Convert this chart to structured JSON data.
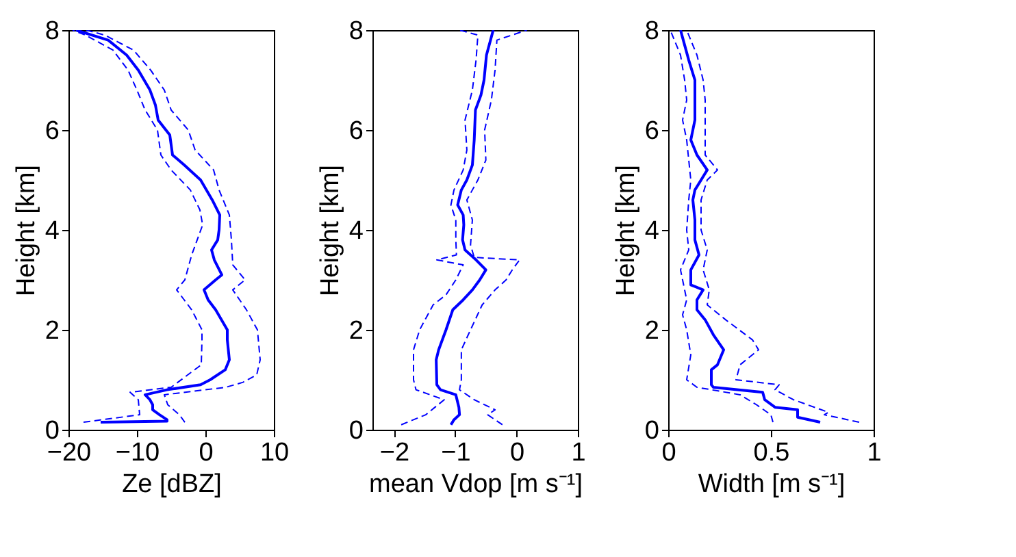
{
  "chart_data": [
    {
      "type": "line",
      "xlabel": "Ze [dBZ]",
      "ylabel": "Height [km]",
      "xlim": [
        -20,
        10
      ],
      "xticks": [
        -20,
        -10,
        0,
        10
      ],
      "ylim": [
        0,
        8
      ],
      "yticks": [
        0,
        2,
        4,
        6,
        8
      ],
      "series": [
        {
          "color": "#0000ff",
          "line_style": "solid",
          "x": [
            -15.3,
            -5.6,
            -5.6,
            -6.7,
            -7.7,
            -7.7,
            -8.1,
            -8.8,
            -5.6,
            -0.7,
            0.7,
            2.9,
            3.5,
            3.2,
            3.2,
            1.5,
            0.4,
            -0.2,
            1.5,
            2.4,
            1.3,
            0.9,
            1.8,
            2.0,
            2.1,
            1.0,
            -0.7,
            -3.1,
            -4.8,
            -5.2,
            -6.9,
            -7.3,
            -8.1,
            -9.8,
            -11.5,
            -14.2,
            -18.9
          ],
          "values": [
            0.15,
            0.17,
            0.2,
            0.3,
            0.4,
            0.5,
            0.6,
            0.7,
            0.8,
            0.9,
            1.0,
            1.2,
            1.4,
            1.8,
            2.0,
            2.4,
            2.6,
            2.8,
            3.0,
            3.1,
            3.4,
            3.6,
            3.8,
            4.0,
            4.3,
            4.6,
            5.0,
            5.3,
            5.5,
            5.9,
            6.2,
            6.5,
            6.8,
            7.2,
            7.5,
            7.8,
            8.0
          ]
        },
        {
          "color": "#0000ff",
          "line_style": "dashed",
          "x": [
            -17.8,
            -9.6,
            -9.8,
            -11,
            -5,
            -0.6,
            -0.5,
            -0.5,
            -2,
            -4.2,
            -3,
            -2,
            -1.2,
            -0.4,
            -0.8,
            -2.2,
            -5,
            -6.5,
            -7,
            -8.8,
            -10,
            -11.3,
            -13.5,
            -17.5,
            -19.4
          ],
          "values": [
            0.15,
            0.3,
            0.6,
            0.75,
            0.85,
            1.3,
            1.8,
            2.0,
            2.4,
            2.8,
            3.0,
            3.5,
            3.8,
            4.1,
            4.4,
            4.8,
            5.2,
            5.5,
            6.0,
            6.4,
            6.8,
            7.2,
            7.6,
            7.9,
            8.0
          ]
        },
        {
          "color": "#0000ff",
          "line_style": "dashed",
          "x": [
            -3,
            -3.8,
            -5.5,
            -6,
            3,
            5.5,
            7.5,
            8,
            7.6,
            6,
            4,
            5.8,
            4,
            3.8,
            3.5,
            2,
            1.2,
            -1.5,
            -2.5,
            -5,
            -6,
            -8,
            -10.5,
            -14.7,
            -17.4
          ],
          "values": [
            0.15,
            0.3,
            0.5,
            0.7,
            0.85,
            0.95,
            1.1,
            1.4,
            2.0,
            2.4,
            2.8,
            3.0,
            3.3,
            3.8,
            4.3,
            4.8,
            5.2,
            5.6,
            6.0,
            6.4,
            6.8,
            7.2,
            7.6,
            7.9,
            8.0
          ]
        }
      ]
    },
    {
      "type": "line",
      "xlabel": "mean Vdop [m s⁻¹]",
      "ylabel": "Height [km]",
      "xlim": [
        -2.35,
        1
      ],
      "xticks": [
        -2,
        -1,
        0,
        1
      ],
      "ylim": [
        0,
        8
      ],
      "yticks": [
        0,
        2,
        4,
        6,
        8
      ],
      "series": [
        {
          "color": "#0000ff",
          "line_style": "solid",
          "x": [
            -1.07,
            -1.02,
            -0.93,
            -0.94,
            -0.99,
            -1.24,
            -1.3,
            -1.31,
            -1.27,
            -1.15,
            -1.04,
            -0.87,
            -0.72,
            -0.6,
            -0.5,
            -0.66,
            -0.84,
            -0.88,
            -0.86,
            -0.87,
            -0.96,
            -0.9,
            -0.81,
            -0.72,
            -0.69,
            -0.67,
            -0.58,
            -0.53,
            -0.49,
            -0.38
          ],
          "values": [
            0.1,
            0.2,
            0.3,
            0.45,
            0.7,
            0.8,
            0.9,
            1.4,
            1.6,
            2.0,
            2.4,
            2.6,
            2.8,
            3.0,
            3.2,
            3.4,
            3.6,
            3.8,
            4.1,
            4.3,
            4.5,
            4.8,
            5.0,
            5.3,
            5.8,
            6.4,
            6.7,
            7.0,
            7.5,
            8.0
          ]
        },
        {
          "color": "#0000ff",
          "line_style": "dashed",
          "x": [
            -1.88,
            -1.48,
            -1.18,
            -1.64,
            -1.68,
            -1.68,
            -1.58,
            -1.36,
            -1.15,
            -0.99,
            -0.87,
            -1.3,
            -0.98,
            -0.99,
            -0.99,
            -1.07,
            -1.02,
            -0.87,
            -0.81,
            -0.84,
            -0.72,
            -0.66,
            -0.63,
            -0.93
          ],
          "values": [
            0.1,
            0.3,
            0.6,
            0.8,
            1.0,
            1.6,
            2.0,
            2.5,
            2.7,
            3.0,
            3.3,
            3.4,
            3.5,
            3.8,
            4.2,
            4.5,
            4.8,
            5.2,
            5.6,
            6.2,
            6.8,
            7.4,
            7.9,
            8.0
          ]
        },
        {
          "color": "#0000ff",
          "line_style": "dashed",
          "x": [
            -0.23,
            -0.47,
            -0.35,
            -0.69,
            -0.93,
            -0.9,
            -0.9,
            -0.75,
            -0.56,
            -0.35,
            -0.17,
            -0.07,
            0.05,
            -0.69,
            -0.75,
            -0.72,
            -0.81,
            -0.63,
            -0.5,
            -0.52,
            -0.41,
            -0.35,
            -0.32,
            0.17
          ],
          "values": [
            0.1,
            0.3,
            0.4,
            0.6,
            0.8,
            1.0,
            1.6,
            2.0,
            2.5,
            2.8,
            3.0,
            3.2,
            3.4,
            3.45,
            3.7,
            4.2,
            4.6,
            5.0,
            5.4,
            6.0,
            6.6,
            7.2,
            7.8,
            8.0
          ]
        }
      ]
    },
    {
      "type": "line",
      "xlabel": "Width [m s⁻¹]",
      "ylabel": "Height [km]",
      "xlim": [
        0,
        1
      ],
      "xticks": [
        0,
        0.5,
        1
      ],
      "ylim": [
        0,
        8
      ],
      "yticks": [
        0,
        2,
        4,
        6,
        8
      ],
      "series": [
        {
          "color": "#0000ff",
          "line_style": "solid",
          "x": [
            0.74,
            0.63,
            0.63,
            0.52,
            0.47,
            0.46,
            0.22,
            0.21,
            0.21,
            0.24,
            0.27,
            0.22,
            0.18,
            0.14,
            0.14,
            0.17,
            0.11,
            0.11,
            0.15,
            0.13,
            0.13,
            0.12,
            0.13,
            0.19,
            0.14,
            0.11,
            0.13,
            0.13,
            0.13,
            0.1,
            0.08,
            0.06
          ],
          "values": [
            0.15,
            0.25,
            0.4,
            0.45,
            0.6,
            0.75,
            0.85,
            0.9,
            1.2,
            1.3,
            1.6,
            1.9,
            2.2,
            2.4,
            2.6,
            2.8,
            2.9,
            3.2,
            3.5,
            3.8,
            4.2,
            4.6,
            4.8,
            5.2,
            5.5,
            5.8,
            6.2,
            6.6,
            7.0,
            7.4,
            7.7,
            8.0
          ]
        },
        {
          "color": "#0000ff",
          "line_style": "dashed",
          "x": [
            0.51,
            0.5,
            0.43,
            0.35,
            0.14,
            0.09,
            0.11,
            0.09,
            0.07,
            0.09,
            0.07,
            0.06,
            0.1,
            0.09,
            0.1,
            0.11,
            0.1,
            0.09,
            0.07,
            0.09,
            0.08,
            0.06,
            0.01
          ],
          "values": [
            0.15,
            0.3,
            0.5,
            0.7,
            0.85,
            1.0,
            1.5,
            2.0,
            2.3,
            2.6,
            3.0,
            3.2,
            3.6,
            4.0,
            4.6,
            5.0,
            5.4,
            5.8,
            6.2,
            6.6,
            7.0,
            7.5,
            8.0
          ]
        },
        {
          "color": "#0000ff",
          "line_style": "dashed",
          "x": [
            0.93,
            0.76,
            0.78,
            0.61,
            0.52,
            0.54,
            0.33,
            0.35,
            0.44,
            0.41,
            0.28,
            0.19,
            0.2,
            0.17,
            0.19,
            0.16,
            0.16,
            0.19,
            0.24,
            0.18,
            0.18,
            0.18,
            0.17,
            0.14,
            0.09
          ],
          "values": [
            0.15,
            0.3,
            0.35,
            0.6,
            0.8,
            0.9,
            1.0,
            1.3,
            1.6,
            1.8,
            2.2,
            2.5,
            2.8,
            3.2,
            3.6,
            4.0,
            4.6,
            5.0,
            5.2,
            5.5,
            6.0,
            6.6,
            7.0,
            7.5,
            8.0
          ]
        }
      ]
    }
  ]
}
